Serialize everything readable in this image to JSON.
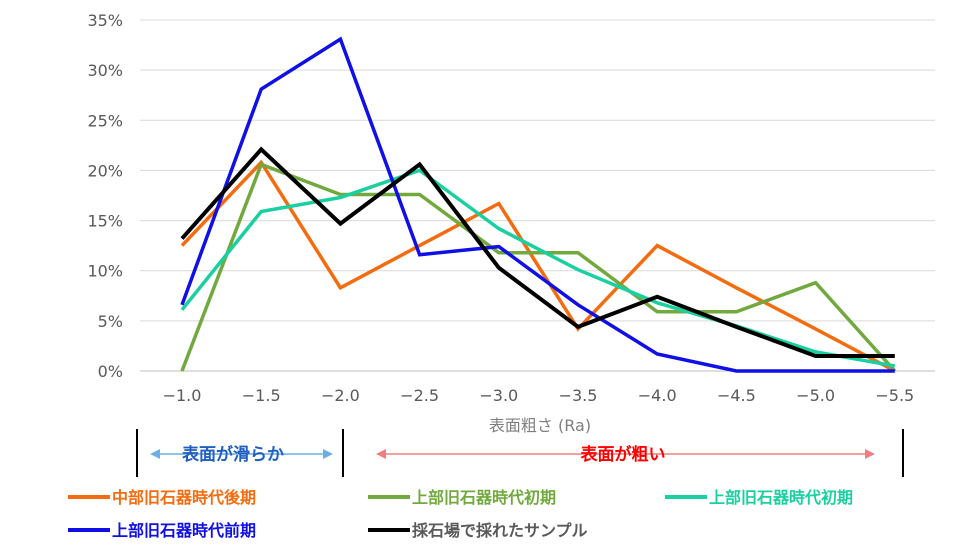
{
  "chart_data": {
    "type": "line",
    "xlabel": "表面粗さ (Ra)",
    "categories": [
      "−1.0",
      "−1.5",
      "−2.0",
      "−2.5",
      "−3.0",
      "−3.5",
      "−4.0",
      "−4.5",
      "−5.0",
      "−5.5"
    ],
    "y_ticks": [
      "0%",
      "5%",
      "10%",
      "15%",
      "20%",
      "25%",
      "30%",
      "35%"
    ],
    "ylim": [
      0,
      35
    ],
    "grid": true,
    "legend_position": "bottom",
    "series": [
      {
        "name": "中部旧石器時代後期",
        "color": "#f36c0f",
        "values": [
          12.5,
          20.8,
          8.3,
          12.5,
          16.7,
          4.2,
          12.5,
          8.3,
          4.2,
          0
        ]
      },
      {
        "name": "上部旧石器時代初期",
        "color": "#72a93f",
        "values": [
          0,
          20.6,
          17.6,
          17.6,
          11.8,
          11.8,
          5.9,
          5.9,
          8.8,
          0
        ]
      },
      {
        "name": "上部旧石器時代初期",
        "color": "#1ad0a0",
        "values": [
          6.1,
          15.9,
          17.3,
          20.0,
          14.2,
          10.1,
          6.8,
          4.5,
          1.9,
          0.5
        ]
      },
      {
        "name": "上部旧石器時代前期",
        "color": "#0f0fe6",
        "values": [
          6.6,
          28.1,
          33.1,
          11.6,
          12.4,
          6.6,
          1.7,
          0,
          0,
          0
        ]
      },
      {
        "name": "採石場で採れたサンプル",
        "color": "#000000",
        "values": [
          13.2,
          22.1,
          14.7,
          20.6,
          10.3,
          4.4,
          7.4,
          4.4,
          1.5,
          1.5
        ]
      }
    ],
    "annotations": {
      "smooth_label": "表面が滑らか",
      "smooth_color": "#1f5fbf",
      "smooth_arrow_color": "#6ab0e6",
      "rough_label": "表面が粗い",
      "rough_color": "#ff0000",
      "rough_arrow_color": "#f08080"
    }
  }
}
